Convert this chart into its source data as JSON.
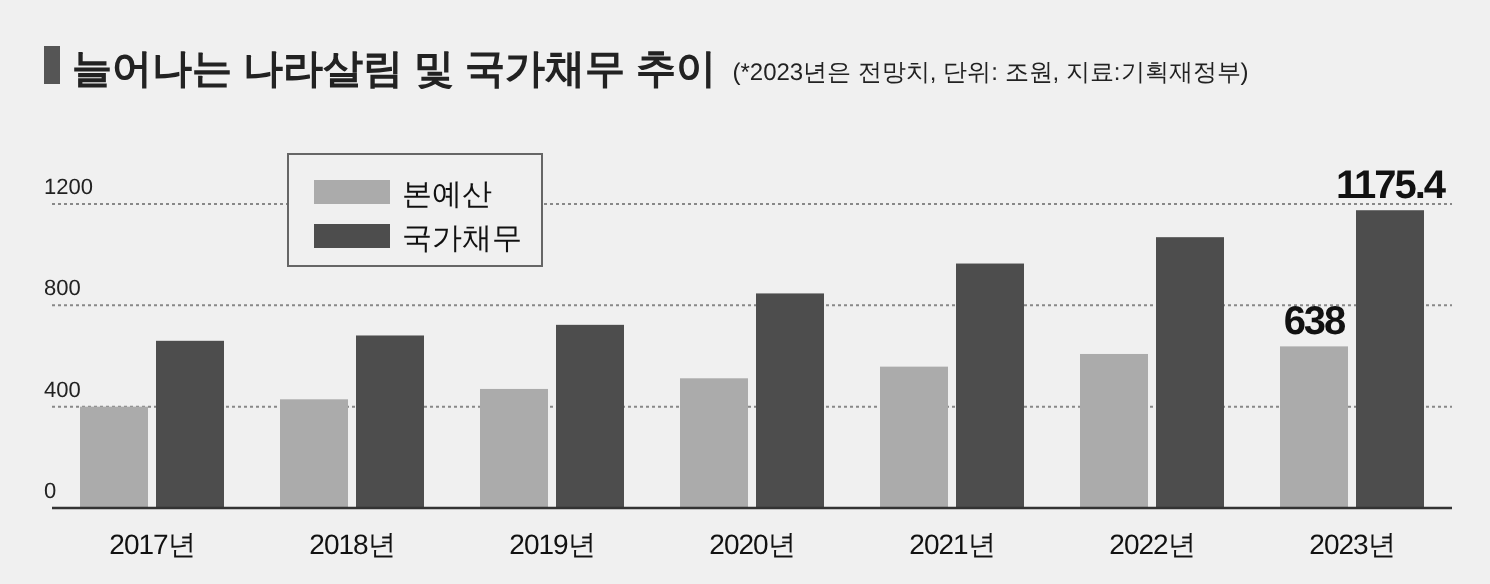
{
  "chart_data": {
    "type": "bar",
    "title": "늘어나는 나라살림 및 국가채무 추이",
    "subtitle": "(*2023년은 전망치, 단위: 조원, 지료:기획재정부)",
    "categories": [
      "2017년",
      "2018년",
      "2019년",
      "2020년",
      "2021년",
      "2022년",
      "2023년"
    ],
    "series": [
      {
        "name": "본예산",
        "color": "#ababab",
        "values": [
          400,
          429,
          470,
          512,
          558,
          608,
          638
        ],
        "value_labels": [
          null,
          null,
          null,
          null,
          null,
          null,
          "638"
        ]
      },
      {
        "name": "국가채무",
        "color": "#4d4d4d",
        "values": [
          660,
          681,
          723,
          847,
          965,
          1069,
          1175.4
        ],
        "value_labels": [
          null,
          null,
          null,
          null,
          null,
          null,
          "1175.4"
        ]
      }
    ],
    "ylim": [
      0,
      1200
    ],
    "yticks": [
      0,
      400,
      800,
      1200
    ],
    "grid": "y",
    "legend": "top left"
  }
}
